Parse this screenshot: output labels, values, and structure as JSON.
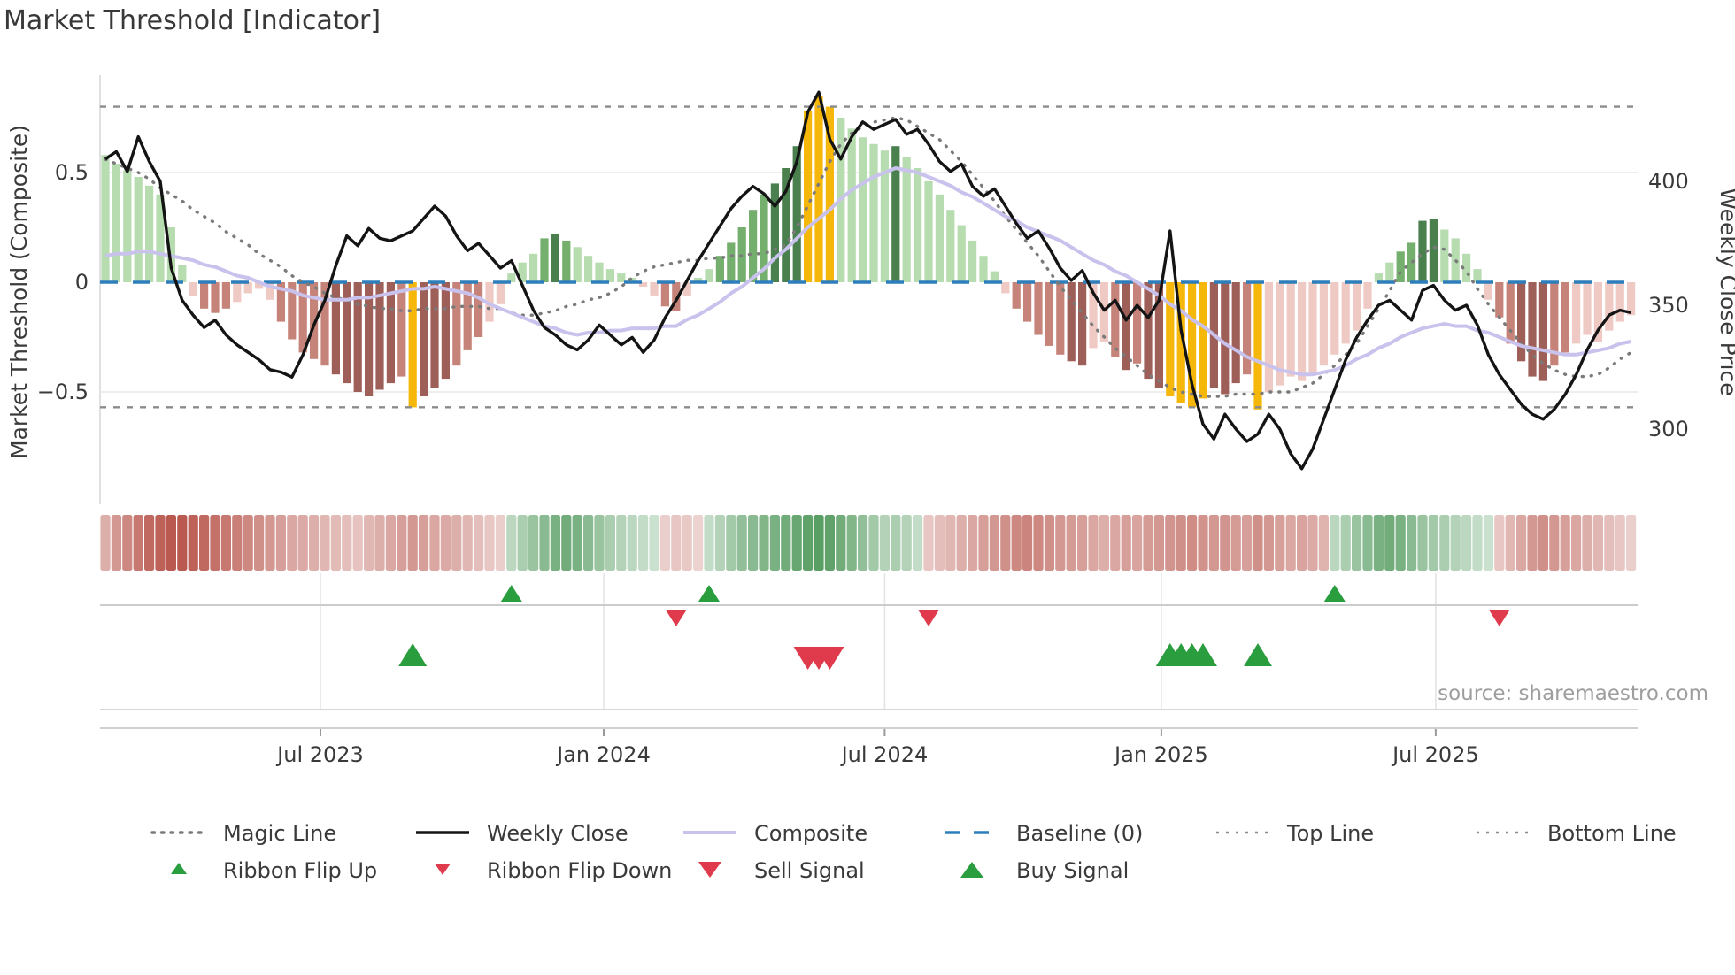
{
  "title": "Market Threshold [Indicator]",
  "source_text": "source: sharemaestro.com",
  "axes": {
    "left_label": "Market Threshold (Composite)",
    "right_label": "Weekly Close Price",
    "left_ticks": [
      "0.5",
      "0",
      "−0.5"
    ],
    "right_ticks": [
      "400",
      "350",
      "300"
    ],
    "x_ticks": [
      "Jul 2023",
      "Jan 2024",
      "Jul 2024",
      "Jan 2025",
      "Jul 2025"
    ]
  },
  "legend": {
    "row1": [
      {
        "label": "Magic Line",
        "type": "dotted-gray"
      },
      {
        "label": "Weekly Close",
        "type": "solid-black"
      },
      {
        "label": "Composite",
        "type": "solid-purple"
      },
      {
        "label": "Baseline (0)",
        "type": "dashed-blue"
      },
      {
        "label": "Top Line",
        "type": "dotted-gray-small"
      },
      {
        "label": "Bottom Line",
        "type": "dotted-gray-small"
      }
    ],
    "row2": [
      {
        "label": "Ribbon Flip Up",
        "type": "triangle-up-green-small"
      },
      {
        "label": "Ribbon Flip Down",
        "type": "triangle-down-red-small"
      },
      {
        "label": "Sell Signal",
        "type": "triangle-down-red"
      },
      {
        "label": "Buy Signal",
        "type": "triangle-up-green"
      }
    ]
  },
  "colors": {
    "weekly_close": "#141414",
    "composite_line": "#c8c2ec",
    "magic_line": "#7a7a7a",
    "baseline": "#2e7ebc",
    "top_bottom_line": "#8b8b8b",
    "grid": "#e9e9e9",
    "spine": "#d9d9d9",
    "signal_green": "#2a9d3f",
    "signal_red": "#e03b4d",
    "source": "#9e9e9e",
    "bar_palette": {
      "g1": "#b7dcb0",
      "g2": "#74af6e",
      "g3": "#49804e",
      "r1": "#efc9c3",
      "r2": "#c68379",
      "r3": "#9e5f58",
      "y": "#f5b70a"
    },
    "ribbon_green_base": [
      62,
      142,
      74
    ],
    "ribbon_red_base": [
      178,
      72,
      62
    ]
  },
  "chart_data": {
    "type": "bar",
    "title": "Market Threshold [Indicator]",
    "weeks": 140,
    "x_tick_labels": [
      "Jul 2023",
      "Jan 2024",
      "Jul 2024",
      "Jan 2025",
      "Jul 2025"
    ],
    "x_tick_week_indices": [
      19.6,
      45.4,
      71.0,
      96.2,
      121.2
    ],
    "left_axis": {
      "label": "Market Threshold (Composite)",
      "ticks": [
        0.5,
        0,
        -0.5
      ],
      "range": [
        -1.01,
        0.94
      ]
    },
    "right_axis": {
      "label": "Weekly Close Price",
      "ticks": [
        400,
        350,
        300
      ],
      "range": [
        269.6,
        442.9
      ]
    },
    "baseline": 0,
    "top_line": 0.8,
    "bottom_line": -0.57,
    "grid": "horizontal at +0.5 and -0.5 only",
    "legend_position": "bottom, two rows",
    "bars_composite": {
      "values": [
        0.58,
        0.54,
        0.51,
        0.48,
        0.44,
        0.4,
        0.25,
        0.08,
        -0.06,
        -0.12,
        -0.14,
        -0.12,
        -0.09,
        -0.05,
        -0.03,
        -0.08,
        -0.18,
        -0.26,
        -0.32,
        -0.35,
        -0.38,
        -0.42,
        -0.46,
        -0.5,
        -0.52,
        -0.49,
        -0.46,
        -0.43,
        -0.57,
        -0.52,
        -0.48,
        -0.44,
        -0.38,
        -0.31,
        -0.25,
        -0.18,
        -0.1,
        0.04,
        0.09,
        0.13,
        0.2,
        0.22,
        0.19,
        0.16,
        0.12,
        0.09,
        0.06,
        0.04,
        0.02,
        -0.02,
        -0.06,
        -0.11,
        -0.13,
        -0.06,
        0.02,
        0.06,
        0.12,
        0.18,
        0.25,
        0.33,
        0.4,
        0.45,
        0.52,
        0.62,
        0.78,
        0.85,
        0.8,
        0.75,
        0.7,
        0.66,
        0.63,
        0.6,
        0.62,
        0.57,
        0.52,
        0.46,
        0.4,
        0.33,
        0.26,
        0.19,
        0.12,
        0.05,
        -0.05,
        -0.12,
        -0.18,
        -0.24,
        -0.29,
        -0.33,
        -0.36,
        -0.38,
        -0.3,
        -0.27,
        -0.34,
        -0.4,
        -0.37,
        -0.44,
        -0.48,
        -0.52,
        -0.55,
        -0.57,
        -0.53,
        -0.48,
        -0.51,
        -0.46,
        -0.42,
        -0.58,
        -0.5,
        -0.47,
        -0.43,
        -0.45,
        -0.42,
        -0.38,
        -0.33,
        -0.28,
        -0.22,
        -0.12,
        0.04,
        0.09,
        0.14,
        0.18,
        0.28,
        0.29,
        0.24,
        0.2,
        0.13,
        0.06,
        -0.08,
        -0.16,
        -0.28,
        -0.36,
        -0.43,
        -0.45,
        -0.38,
        -0.32,
        -0.28,
        -0.24,
        -0.27,
        -0.22,
        -0.18,
        -0.15
      ],
      "color_codes": [
        "g1",
        "g1",
        "g1",
        "g1",
        "g1",
        "g1",
        "g1",
        "g1",
        "r1",
        "r2",
        "r2",
        "r2",
        "r1",
        "r1",
        "r1",
        "r1",
        "r2",
        "r2",
        "r2",
        "r2",
        "r2",
        "r3",
        "r3",
        "r3",
        "r3",
        "r3",
        "r3",
        "r2",
        "y",
        "r3",
        "r3",
        "r3",
        "r2",
        "r2",
        "r2",
        "r1",
        "r1",
        "g1",
        "g1",
        "g1",
        "g2",
        "g3",
        "g2",
        "g1",
        "g1",
        "g1",
        "g1",
        "g1",
        "g1",
        "r1",
        "r1",
        "r2",
        "r2",
        "r1",
        "g1",
        "g1",
        "g2",
        "g2",
        "g2",
        "g2",
        "g2",
        "g3",
        "g3",
        "g3",
        "y",
        "y",
        "y",
        "g1",
        "g1",
        "g1",
        "g1",
        "g1",
        "g3",
        "g1",
        "g1",
        "g1",
        "g1",
        "g1",
        "g1",
        "g1",
        "g1",
        "g1",
        "r1",
        "r2",
        "r2",
        "r2",
        "r2",
        "r2",
        "r3",
        "r3",
        "r1",
        "r1",
        "r2",
        "r3",
        "r2",
        "r3",
        "r3",
        "y",
        "y",
        "y",
        "y",
        "r3",
        "r3",
        "r3",
        "r2",
        "y",
        "r1",
        "r1",
        "r1",
        "r1",
        "r1",
        "r1",
        "r1",
        "r1",
        "r1",
        "r1",
        "g1",
        "g1",
        "g2",
        "g2",
        "g3",
        "g3",
        "g1",
        "g1",
        "g1",
        "g1",
        "r1",
        "r2",
        "r2",
        "r3",
        "r3",
        "r3",
        "r2",
        "r2",
        "r1",
        "r1",
        "r1",
        "r1",
        "r1",
        "r1"
      ]
    },
    "weekly_close": [
      409,
      412,
      404,
      418,
      408,
      400,
      365,
      352,
      346,
      341,
      344,
      338,
      334,
      331,
      328,
      324,
      323,
      321,
      330,
      342,
      352,
      366,
      378,
      374,
      381,
      377,
      376,
      378,
      380,
      385,
      390,
      386,
      378,
      372,
      375,
      370,
      365,
      368,
      358,
      348,
      341,
      338,
      334,
      332,
      336,
      342,
      338,
      334,
      337,
      331,
      336,
      345,
      352,
      360,
      368,
      375,
      382,
      389,
      394,
      398,
      395,
      390,
      396,
      408,
      428,
      436,
      417,
      409,
      418,
      424,
      421,
      423,
      425,
      419,
      421,
      415,
      408,
      404,
      407,
      398,
      394,
      397,
      390,
      383,
      377,
      380,
      373,
      365,
      360,
      364,
      355,
      348,
      352,
      344,
      350,
      345,
      352,
      380,
      340,
      318,
      302,
      296,
      306,
      300,
      295,
      298,
      306,
      300,
      290,
      284,
      292,
      304,
      316,
      328,
      337,
      344,
      350,
      352,
      348,
      344,
      356,
      358,
      352,
      348,
      350,
      342,
      330,
      322,
      316,
      310,
      306,
      304,
      308,
      314,
      322,
      332,
      340,
      346,
      348,
      347
    ],
    "composite_line": [
      0.12,
      0.13,
      0.13,
      0.14,
      0.14,
      0.13,
      0.12,
      0.11,
      0.1,
      0.08,
      0.07,
      0.05,
      0.03,
      0.02,
      0.0,
      -0.02,
      -0.03,
      -0.04,
      -0.06,
      -0.07,
      -0.08,
      -0.08,
      -0.08,
      -0.07,
      -0.07,
      -0.06,
      -0.05,
      -0.04,
      -0.03,
      -0.03,
      -0.02,
      -0.03,
      -0.04,
      -0.05,
      -0.07,
      -0.1,
      -0.12,
      -0.14,
      -0.16,
      -0.18,
      -0.2,
      -0.21,
      -0.23,
      -0.24,
      -0.23,
      -0.23,
      -0.22,
      -0.22,
      -0.21,
      -0.21,
      -0.21,
      -0.2,
      -0.2,
      -0.17,
      -0.15,
      -0.12,
      -0.09,
      -0.05,
      -0.02,
      0.02,
      0.06,
      0.11,
      0.15,
      0.2,
      0.25,
      0.29,
      0.33,
      0.38,
      0.42,
      0.45,
      0.48,
      0.5,
      0.52,
      0.51,
      0.5,
      0.48,
      0.46,
      0.44,
      0.41,
      0.39,
      0.36,
      0.33,
      0.3,
      0.28,
      0.25,
      0.23,
      0.21,
      0.19,
      0.16,
      0.13,
      0.1,
      0.08,
      0.05,
      0.03,
      0.0,
      -0.03,
      -0.06,
      -0.1,
      -0.13,
      -0.17,
      -0.2,
      -0.24,
      -0.28,
      -0.31,
      -0.34,
      -0.36,
      -0.38,
      -0.4,
      -0.41,
      -0.42,
      -0.42,
      -0.41,
      -0.4,
      -0.38,
      -0.35,
      -0.33,
      -0.3,
      -0.28,
      -0.25,
      -0.23,
      -0.21,
      -0.2,
      -0.19,
      -0.2,
      -0.2,
      -0.22,
      -0.23,
      -0.25,
      -0.27,
      -0.29,
      -0.3,
      -0.31,
      -0.32,
      -0.33,
      -0.33,
      -0.32,
      -0.31,
      -0.3,
      -0.28,
      -0.27
    ],
    "magic_line": [
      0.56,
      0.54,
      0.52,
      0.5,
      0.47,
      0.43,
      0.4,
      0.37,
      0.33,
      0.3,
      0.27,
      0.23,
      0.2,
      0.17,
      0.13,
      0.1,
      0.07,
      0.03,
      0.0,
      -0.02,
      -0.05,
      -0.07,
      -0.08,
      -0.1,
      -0.11,
      -0.12,
      -0.12,
      -0.13,
      -0.13,
      -0.12,
      -0.12,
      -0.12,
      -0.11,
      -0.11,
      -0.11,
      -0.12,
      -0.12,
      -0.14,
      -0.15,
      -0.15,
      -0.14,
      -0.13,
      -0.11,
      -0.1,
      -0.08,
      -0.07,
      -0.05,
      -0.02,
      0.02,
      0.05,
      0.07,
      0.08,
      0.09,
      0.1,
      0.1,
      0.11,
      0.11,
      0.12,
      0.12,
      0.13,
      0.13,
      0.15,
      0.17,
      0.25,
      0.35,
      0.45,
      0.55,
      0.63,
      0.68,
      0.71,
      0.73,
      0.74,
      0.75,
      0.74,
      0.71,
      0.68,
      0.65,
      0.6,
      0.55,
      0.49,
      0.43,
      0.37,
      0.3,
      0.24,
      0.18,
      0.12,
      0.05,
      -0.02,
      -0.08,
      -0.14,
      -0.2,
      -0.25,
      -0.3,
      -0.34,
      -0.38,
      -0.42,
      -0.45,
      -0.48,
      -0.5,
      -0.51,
      -0.52,
      -0.52,
      -0.52,
      -0.51,
      -0.51,
      -0.51,
      -0.5,
      -0.5,
      -0.5,
      -0.48,
      -0.46,
      -0.42,
      -0.38,
      -0.33,
      -0.28,
      -0.2,
      -0.12,
      -0.04,
      0.05,
      0.09,
      0.13,
      0.16,
      0.15,
      0.1,
      0.05,
      -0.03,
      -0.1,
      -0.16,
      -0.22,
      -0.28,
      -0.33,
      -0.37,
      -0.4,
      -0.42,
      -0.43,
      -0.43,
      -0.42,
      -0.39,
      -0.35,
      -0.32
    ],
    "ribbon": [
      -0.35,
      -0.5,
      -0.6,
      -0.7,
      -0.8,
      -0.85,
      -0.9,
      -0.9,
      -0.85,
      -0.8,
      -0.75,
      -0.7,
      -0.65,
      -0.6,
      -0.55,
      -0.5,
      -0.45,
      -0.4,
      -0.38,
      -0.35,
      -0.3,
      -0.28,
      -0.25,
      -0.22,
      -0.3,
      -0.35,
      -0.4,
      -0.45,
      -0.5,
      -0.45,
      -0.4,
      -0.38,
      -0.35,
      -0.3,
      -0.25,
      -0.2,
      -0.15,
      0.25,
      0.35,
      0.45,
      0.55,
      0.65,
      0.7,
      0.65,
      0.55,
      0.45,
      0.35,
      0.3,
      0.25,
      0.2,
      0.15,
      -0.15,
      -0.2,
      -0.18,
      -0.12,
      0.2,
      0.3,
      0.4,
      0.5,
      0.55,
      0.6,
      0.65,
      0.7,
      0.75,
      0.8,
      0.85,
      0.8,
      0.7,
      0.6,
      0.5,
      0.4,
      0.3,
      0.35,
      0.3,
      0.2,
      -0.2,
      -0.25,
      -0.3,
      -0.35,
      -0.4,
      -0.45,
      -0.5,
      -0.55,
      -0.6,
      -0.62,
      -0.6,
      -0.55,
      -0.5,
      -0.48,
      -0.45,
      -0.4,
      -0.35,
      -0.4,
      -0.45,
      -0.42,
      -0.48,
      -0.5,
      -0.52,
      -0.55,
      -0.57,
      -0.53,
      -0.5,
      -0.52,
      -0.48,
      -0.45,
      -0.55,
      -0.5,
      -0.45,
      -0.4,
      -0.42,
      -0.38,
      -0.32,
      0.25,
      0.35,
      0.45,
      0.55,
      0.65,
      0.7,
      0.65,
      0.55,
      0.45,
      0.4,
      0.35,
      0.3,
      0.25,
      0.2,
      0.15,
      -0.2,
      -0.3,
      -0.4,
      -0.5,
      -0.55,
      -0.5,
      -0.45,
      -0.4,
      -0.35,
      -0.3,
      -0.25,
      -0.2,
      -0.15
    ],
    "signals": {
      "ribbon_flip_up_weeks": [
        37,
        55,
        112
      ],
      "ribbon_flip_down_weeks": [
        52,
        75,
        127
      ],
      "buy_signal_weeks": [
        28,
        97,
        98,
        99,
        100,
        105
      ],
      "sell_signal_weeks": [
        64,
        65,
        66
      ]
    }
  }
}
